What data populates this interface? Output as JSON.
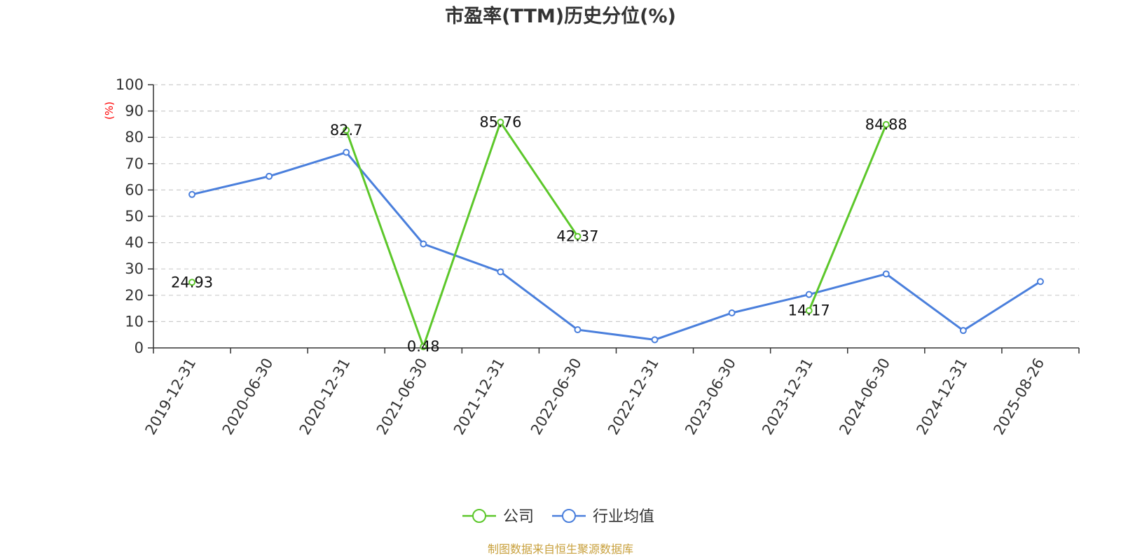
{
  "chart_data": {
    "type": "line",
    "title": "市盈率(TTM)历史分位(%)",
    "ylabel": "(%)",
    "ylim": [
      0,
      100
    ],
    "yticks": [
      0,
      10,
      20,
      30,
      40,
      50,
      60,
      70,
      80,
      90,
      100
    ],
    "grid": true,
    "legend_position": "bottom",
    "categories": [
      "2019-12-31",
      "2020-06-30",
      "2020-12-31",
      "2021-06-30",
      "2021-12-31",
      "2022-06-30",
      "2022-12-31",
      "2023-06-30",
      "2023-12-31",
      "2024-06-30",
      "2024-12-31",
      "2025-08-26"
    ],
    "series": [
      {
        "name": "公司",
        "color": "#5cc72a",
        "values": [
          24.93,
          null,
          82.7,
          0.48,
          85.76,
          42.37,
          null,
          null,
          14.17,
          84.88,
          null,
          null
        ],
        "labels": [
          "24.93",
          null,
          "82.7",
          "0.48",
          "85.76",
          "42.37",
          null,
          null,
          "14.17",
          "84.88",
          null,
          null
        ]
      },
      {
        "name": "行业均值",
        "color": "#4a7fdc",
        "values": [
          58.3,
          65.2,
          74.3,
          39.5,
          28.9,
          6.9,
          3.1,
          13.3,
          20.3,
          28.1,
          6.6,
          25.2
        ]
      }
    ],
    "source": "制图数据来自恒生聚源数据库"
  }
}
